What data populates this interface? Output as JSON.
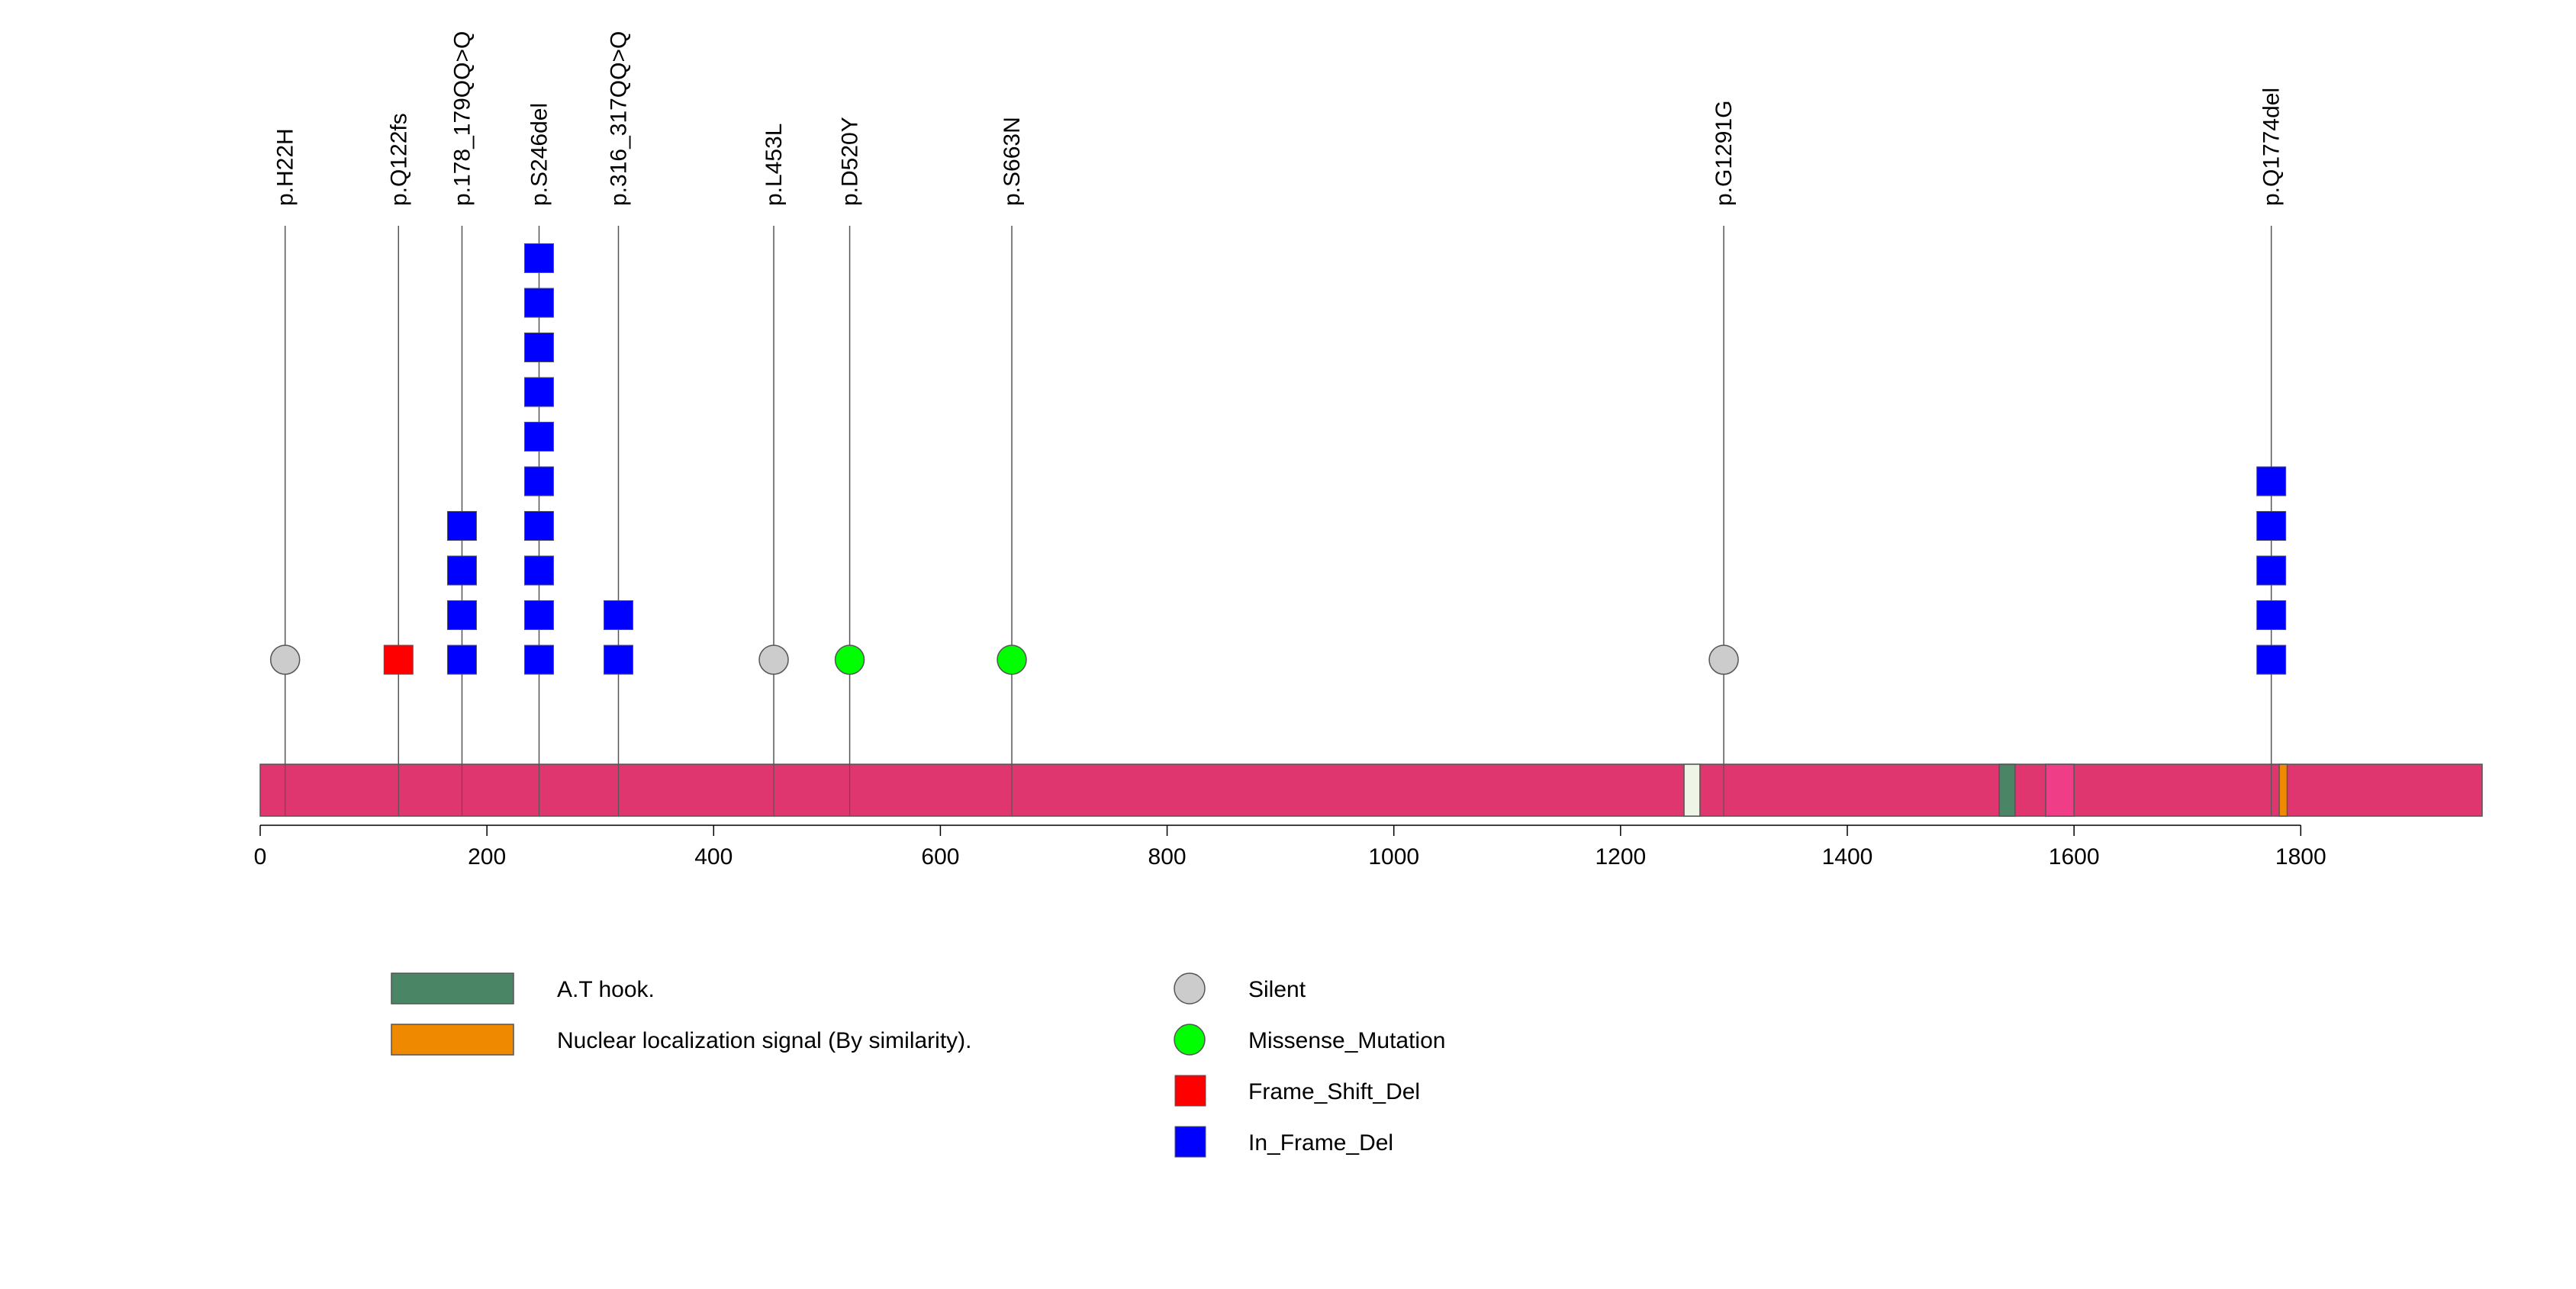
{
  "chart_data": {
    "type": "lollipop",
    "protein_length": 1960,
    "xlim": [
      0,
      1960
    ],
    "x_ticks": [
      0,
      200,
      400,
      600,
      800,
      1000,
      1200,
      1400,
      1600,
      1800
    ],
    "x_tick_labels": [
      "0",
      "200",
      "400",
      "600",
      "800",
      "1000",
      "1200",
      "1400",
      "1600",
      "1800"
    ],
    "backbone_color": "#e0366f",
    "domains": [
      {
        "name": "segment",
        "start": 1256,
        "end": 1270,
        "color": "#eef5e7"
      },
      {
        "name": "A.T hook.",
        "start": 1534,
        "end": 1548,
        "color": "#4a8566"
      },
      {
        "name": "segment",
        "start": 1575,
        "end": 1600,
        "color": "#ef3e87"
      },
      {
        "name": "Nuclear localization signal (By similarity).",
        "start": 1781,
        "end": 1788,
        "color": "#ef8a00"
      }
    ],
    "mutations": [
      {
        "label": "p.H22H",
        "position": 22,
        "type": "Silent",
        "count": 1
      },
      {
        "label": "p.Q122fs",
        "position": 122,
        "type": "Frame_Shift_Del",
        "count": 1
      },
      {
        "label": "p.178_179QQ>Q",
        "position": 178,
        "type": "In_Frame_Del",
        "count": 4
      },
      {
        "label": "p.S246del",
        "position": 246,
        "type": "In_Frame_Del",
        "count": 10
      },
      {
        "label": "p.316_317QQ>Q",
        "position": 316,
        "type": "In_Frame_Del",
        "count": 2
      },
      {
        "label": "p.L453L",
        "position": 453,
        "type": "Silent",
        "count": 1
      },
      {
        "label": "p.D520Y",
        "position": 520,
        "type": "Missense_Mutation",
        "count": 1
      },
      {
        "label": "p.S663N",
        "position": 663,
        "type": "Missense_Mutation",
        "count": 1
      },
      {
        "label": "p.G1291G",
        "position": 1291,
        "type": "Silent",
        "count": 1
      },
      {
        "label": "p.Q1774del",
        "position": 1774,
        "type": "In_Frame_Del",
        "count": 5
      }
    ],
    "mutation_styles": {
      "Silent": {
        "shape": "circle",
        "color": "#cccccc"
      },
      "Missense_Mutation": {
        "shape": "circle",
        "color": "#00ff00"
      },
      "Frame_Shift_Del": {
        "shape": "square",
        "color": "#ff0000"
      },
      "In_Frame_Del": {
        "shape": "square",
        "color": "#0000ff"
      }
    },
    "legend_domains": [
      {
        "label": "A.T hook.",
        "color": "#4a8566"
      },
      {
        "label": "Nuclear localization signal (By similarity).",
        "color": "#ef8a00"
      }
    ],
    "legend_mutations": [
      {
        "label": "Silent",
        "shape": "circle",
        "color": "#cccccc"
      },
      {
        "label": "Missense_Mutation",
        "shape": "circle",
        "color": "#00ff00"
      },
      {
        "label": "Frame_Shift_Del",
        "shape": "square",
        "color": "#ff0000"
      },
      {
        "label": "In_Frame_Del",
        "shape": "square",
        "color": "#0000ff"
      }
    ]
  }
}
